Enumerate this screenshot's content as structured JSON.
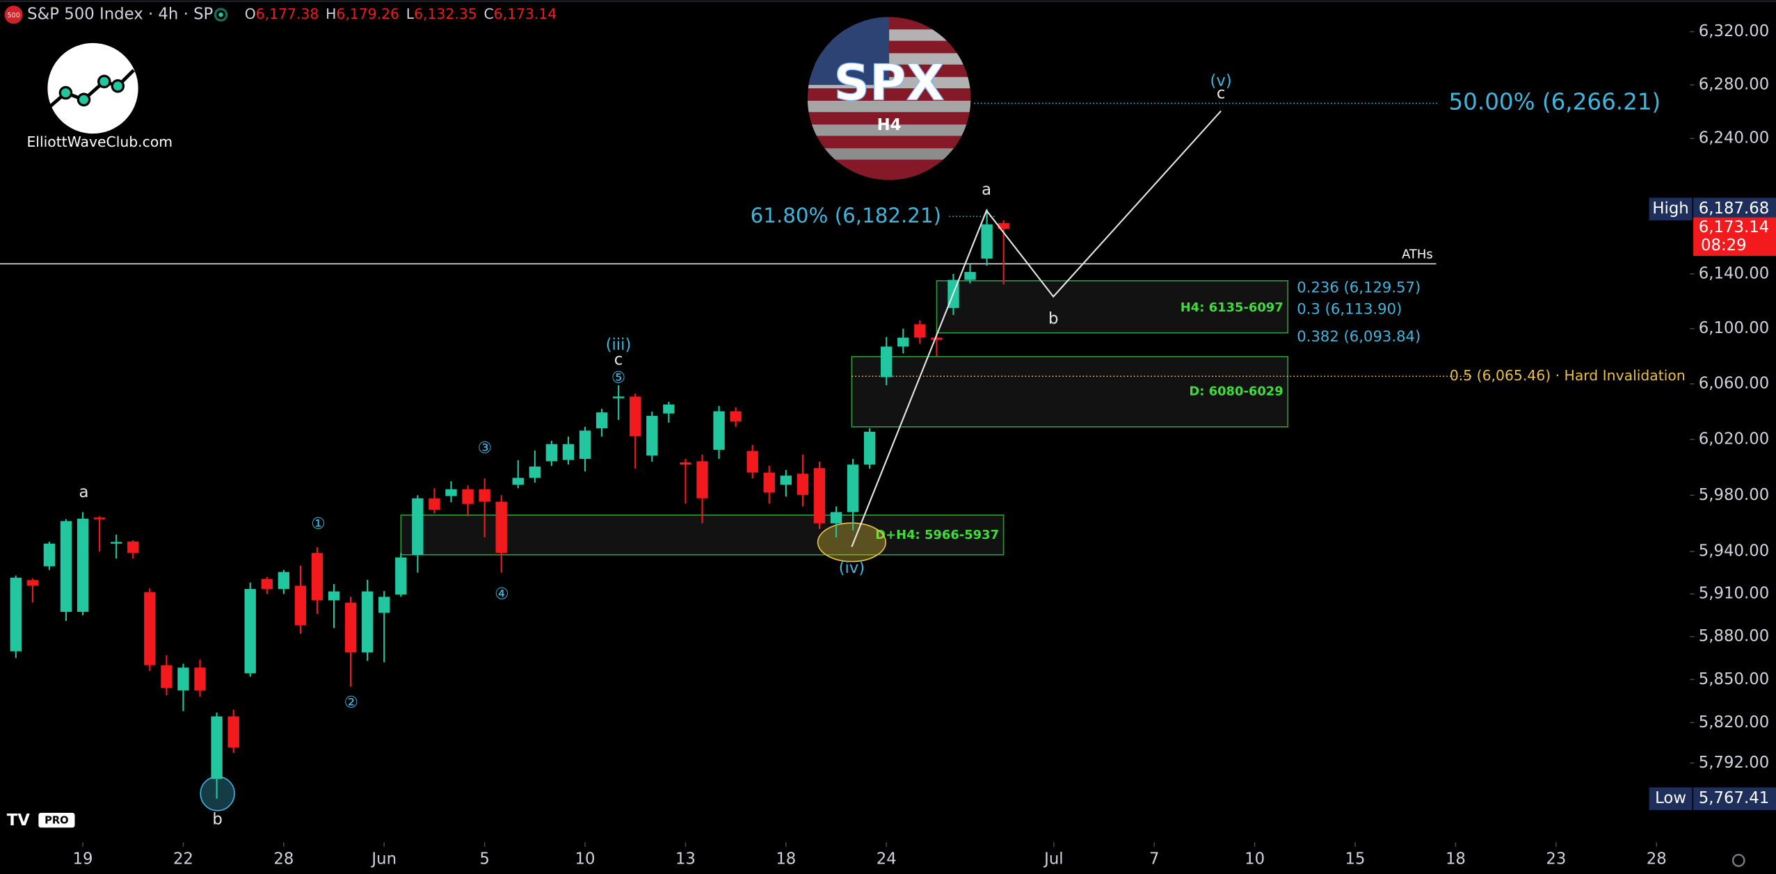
{
  "header": {
    "title": "S&P 500 Index · 4h · SP",
    "icon": "500",
    "ohlc": [
      {
        "key": "O",
        "value": "6,177.38"
      },
      {
        "key": "H",
        "value": "6,179.26"
      },
      {
        "key": "L",
        "value": "6,132.35"
      },
      {
        "key": "C",
        "value": "6,173.14"
      }
    ]
  },
  "logos": {
    "site": "ElliottWaveClub.com",
    "symbol": "SPX",
    "timeframe": "H4",
    "platform": "PRO"
  },
  "chart_data": {
    "type": "candlestick",
    "log_scale": true,
    "up_color": "#22c7a0",
    "down_color": "#f21a1d",
    "x": [
      0,
      1,
      2,
      3,
      4,
      5,
      6,
      7,
      8,
      9,
      10,
      11,
      12,
      13,
      14,
      15,
      16,
      17,
      18,
      19,
      20,
      21,
      22,
      23,
      24,
      25,
      26,
      27,
      28,
      29,
      30,
      31,
      32,
      33,
      34,
      35,
      36,
      37,
      38,
      39,
      40,
      41,
      42,
      43,
      44,
      45,
      46,
      47,
      48,
      49,
      50,
      51,
      52,
      53,
      54,
      55,
      56,
      57,
      58,
      59
    ],
    "open": [
      5869.7,
      5919.8,
      5929.5,
      5897.4,
      5897.4,
      5964.1,
      5946.2,
      5947.1,
      5911.3,
      5860.0,
      5842.4,
      5858.3,
      5781.0,
      5824.3,
      5854.3,
      5920.6,
      5913.5,
      5915.8,
      5939.0,
      5905.5,
      5903.9,
      5868.9,
      5896.7,
      5909.6,
      5937.5,
      5977.8,
      5979.4,
      5984.3,
      5984.3,
      5975.4,
      5987.5,
      5992.4,
      6004.3,
      6005.2,
      6006.0,
      6027.9,
      6050.0,
      6050.8,
      6008.4,
      6038.6,
      6003.5,
      6004.3,
      6012.5,
      6040.2,
      6011.7,
      5996.2,
      5987.5,
      5995.4,
      5999.4,
      5960.0,
      5968.0,
      6001.9,
      6064.8,
      6087.0,
      6103.2,
      6093.5,
      6115.1,
      6135.6,
      6151.2,
      6177.38
    ],
    "high": [
      5923,
      5921,
      5947,
      5963,
      5968,
      5965,
      5952,
      5948,
      5914,
      5867,
      5861,
      5864,
      5827,
      5829,
      5918,
      5922,
      5927,
      5930,
      5943,
      5917,
      5908,
      5920,
      5912,
      5939,
      5980,
      5985,
      5990,
      5987,
      5992,
      5980,
      6005,
      6012,
      6019,
      6022,
      6029,
      6042,
      6059,
      6053,
      6040,
      6047,
      6006,
      6009,
      6044,
      6043,
      6016,
      6001,
      5998,
      6009,
      6004,
      5972,
      6006,
      6028,
      6094,
      6100,
      6106,
      6097,
      6140,
      6147,
      6187.68,
      6179.26
    ],
    "low": [
      5865,
      5904,
      5927,
      5891,
      5895,
      5940,
      5935,
      5935,
      5856,
      5839,
      5828,
      5838,
      5767.41,
      5799,
      5852,
      5910,
      5910,
      5882,
      5896,
      5886,
      5845,
      5863,
      5862,
      5908,
      5925,
      5967,
      5975,
      5965,
      5950,
      5925,
      5985,
      5989,
      6001,
      6002,
      5997,
      6022,
      6034,
      5999,
      6004,
      6032,
      5974,
      5960,
      6006,
      6029,
      5992,
      5974,
      5979,
      5972,
      5956,
      5950,
      5955,
      5999,
      6059,
      6082,
      6089,
      6080,
      6110,
      6133,
      6146,
      6132.35
    ],
    "close": [
      5921.5,
      5915.8,
      5945.6,
      5961.6,
      5963.3,
      5963.4,
      5946.8,
      5939.0,
      5860.0,
      5844.0,
      5858.3,
      5842.4,
      5824.3,
      5802.8,
      5913.5,
      5913.5,
      5925.5,
      5888.0,
      5905.5,
      5911.8,
      5868.9,
      5911.8,
      5908.0,
      5935.8,
      5977.8,
      5969.7,
      5984.3,
      5973.8,
      5975.4,
      5939.0,
      5992.4,
      6000.5,
      6016.6,
      6016.6,
      6026.3,
      6039.4,
      6050.8,
      6022.2,
      6036.9,
      6045.1,
      6001.9,
      5977.8,
      6040.2,
      6032.8,
      5996.2,
      5981.9,
      5994.0,
      5980.2,
      5960.0,
      5968.0,
      6001.9,
      6025.5,
      6087.0,
      6093.5,
      6093.5,
      6091.9,
      6135.6,
      6141.4,
      6176.4,
      6173.14
    ],
    "xlim": [
      -0.947,
      99.86
    ],
    "xticks": [
      {
        "value": 4,
        "label": "19"
      },
      {
        "value": 10,
        "label": "22"
      },
      {
        "value": 16,
        "label": "28"
      },
      {
        "value": 22,
        "label": "Jun"
      },
      {
        "value": 28,
        "label": "5"
      },
      {
        "value": 34,
        "label": "10"
      },
      {
        "value": 40,
        "label": "13"
      },
      {
        "value": 46,
        "label": "18"
      },
      {
        "value": 52,
        "label": "24"
      },
      {
        "value": 62,
        "label": "Jul"
      },
      {
        "value": 68,
        "label": "7"
      },
      {
        "value": 74,
        "label": "10"
      },
      {
        "value": 80,
        "label": "15"
      },
      {
        "value": 86,
        "label": "18"
      },
      {
        "value": 92,
        "label": "23"
      },
      {
        "value": 98,
        "label": "28"
      }
    ],
    "ylim": [
      5740.6,
      6343.9
    ],
    "yticks": [
      {
        "value": 6320,
        "label": "6,320.00"
      },
      {
        "value": 6280,
        "label": "6,280.00"
      },
      {
        "value": 6240,
        "label": "6,240.00"
      },
      {
        "value": 6140,
        "label": "6,140.00"
      },
      {
        "value": 6100,
        "label": "6,100.00"
      },
      {
        "value": 6060,
        "label": "6,060.00"
      },
      {
        "value": 6020,
        "label": "6,020.00"
      },
      {
        "value": 5980,
        "label": "5,980.00"
      },
      {
        "value": 5940,
        "label": "5,940.00"
      },
      {
        "value": 5910,
        "label": "5,910.00"
      },
      {
        "value": 5880,
        "label": "5,880.00"
      },
      {
        "value": 5850,
        "label": "5,850.00"
      },
      {
        "value": 5820,
        "label": "5,820.00"
      },
      {
        "value": 5792,
        "label": "5,792.00"
      }
    ],
    "high_marker": {
      "label": "High",
      "value": 6187.68,
      "value_label": "6,187.68"
    },
    "low_marker": {
      "label": "Low",
      "value": 5767.41,
      "value_label": "5,767.41"
    },
    "last_price": {
      "value": 6173.14,
      "value_label": "6,173.14",
      "countdown": "08:29"
    },
    "levels": [
      {
        "value": 6266.21,
        "label": "50.00% (6,266.21)"
      },
      {
        "value": 6182.21,
        "label": "61.80% (6,182.21)"
      },
      {
        "value": 6129.57,
        "label": "0.236 (6,129.57)"
      },
      {
        "value": 6113.9,
        "label": "0.3 (6,113.90)"
      },
      {
        "value": 6093.84,
        "label": "0.382 (6,093.84)"
      },
      {
        "value": 6065.46,
        "label": "0.5 (6,065.46) · Hard Invalidation"
      }
    ],
    "zones": [
      "H4: 6135-6097",
      "D: 6080-6029",
      "D+H4: 5966-5937"
    ],
    "ath_label": "ATHs",
    "wave_labels": [
      "a",
      "b",
      "①",
      "②",
      "③",
      "④",
      "(iii)",
      "c",
      "⑤",
      "(iv)",
      "a",
      "b",
      "(v)",
      "c"
    ]
  }
}
